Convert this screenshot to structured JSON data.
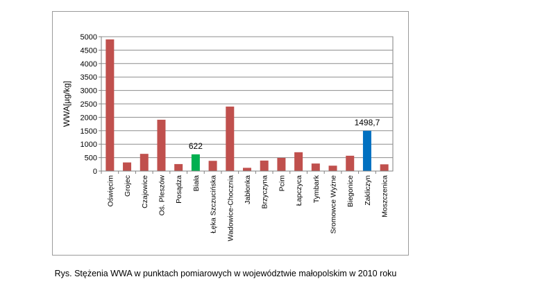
{
  "caption": "Rys. Stężenia WWA w punktach pomiarowych w województwie małopolskim w 2010 roku",
  "chart_data": {
    "type": "bar",
    "title": "",
    "xlabel": "",
    "ylabel": "WWA[µg/kg]",
    "ylim": [
      0,
      5000
    ],
    "yticks": [
      "0",
      "500",
      "1000",
      "1500",
      "2000",
      "2500",
      "3000",
      "3500",
      "4000",
      "4500",
      "5000"
    ],
    "grid": true,
    "legend": "none",
    "categories": [
      "Oświęcim",
      "Grojec",
      "Czajowice",
      "Oś. Pleszów",
      "Posądza",
      "Biała",
      "Łęka Szczucińska",
      "Wadowice-Chocznia",
      "Jabłonka",
      "Brzyczyna",
      "Pcim",
      "Łapczyca",
      "Tymbark",
      "Sromowce Wyżne",
      "Biegonice",
      "Zakliczyn",
      "Moszczenica"
    ],
    "values": [
      4900,
      320,
      640,
      1910,
      260,
      622,
      380,
      2400,
      120,
      390,
      490,
      700,
      280,
      200,
      570,
      1498.7,
      250
    ],
    "colors": [
      "#c0504d",
      "#c0504d",
      "#c0504d",
      "#c0504d",
      "#c0504d",
      "#00b050",
      "#c0504d",
      "#c0504d",
      "#c0504d",
      "#c0504d",
      "#c0504d",
      "#c0504d",
      "#c0504d",
      "#c0504d",
      "#c0504d",
      "#0070c0",
      "#c0504d"
    ],
    "data_labels": [
      {
        "category": "Biała",
        "text": "622"
      },
      {
        "category": "Zakliczyn",
        "text": "1498,7"
      }
    ]
  }
}
